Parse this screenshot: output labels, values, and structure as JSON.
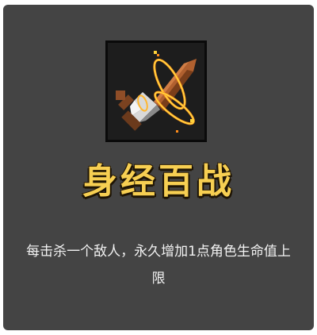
{
  "card": {
    "title": "身经百战",
    "description": "每击杀一个敌人，永久增加1点角色生命值上限",
    "icon": "flaming-dagger-icon"
  },
  "colors": {
    "card_background": "#444444",
    "icon_background": "#1d1d1d",
    "title": "#f7cf52",
    "description": "#f2f2f2"
  }
}
